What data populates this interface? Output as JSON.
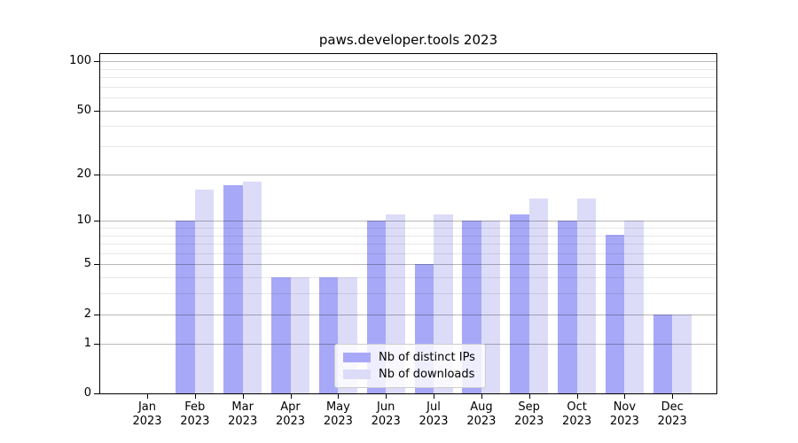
{
  "chart_data": {
    "type": "bar",
    "title": "paws.developer.tools 2023",
    "categories": [
      "Jan",
      "Feb",
      "Mar",
      "Apr",
      "May",
      "Jun",
      "Jul",
      "Aug",
      "Sep",
      "Oct",
      "Nov",
      "Dec"
    ],
    "x_year_label": "2023",
    "series": [
      {
        "name": "Nb of distinct IPs",
        "color": "#a8a8f8",
        "values": [
          0,
          10,
          17,
          4,
          4,
          10,
          5,
          10,
          11,
          10,
          8,
          2
        ]
      },
      {
        "name": "Nb of downloads",
        "color": "#dcdcf8",
        "values": [
          0,
          16,
          18,
          4,
          4,
          11,
          11,
          10,
          14,
          14,
          10,
          2
        ]
      }
    ],
    "y_axis": {
      "scale": "log10(1+v)",
      "major_ticks": [
        0,
        1,
        2,
        5,
        10,
        20,
        50,
        100
      ],
      "minor_ticks": [
        3,
        4,
        6,
        7,
        8,
        9,
        30,
        40,
        60,
        70,
        80,
        90
      ],
      "top_tick": 100
    },
    "grid": true,
    "legend_position": "bottom-center",
    "colors": {
      "axis": "#000000",
      "grid_major": "#b9b9b9",
      "grid_minor": "#ebebeb",
      "legend_border": "#cccccc",
      "background": "#ffffff"
    }
  }
}
